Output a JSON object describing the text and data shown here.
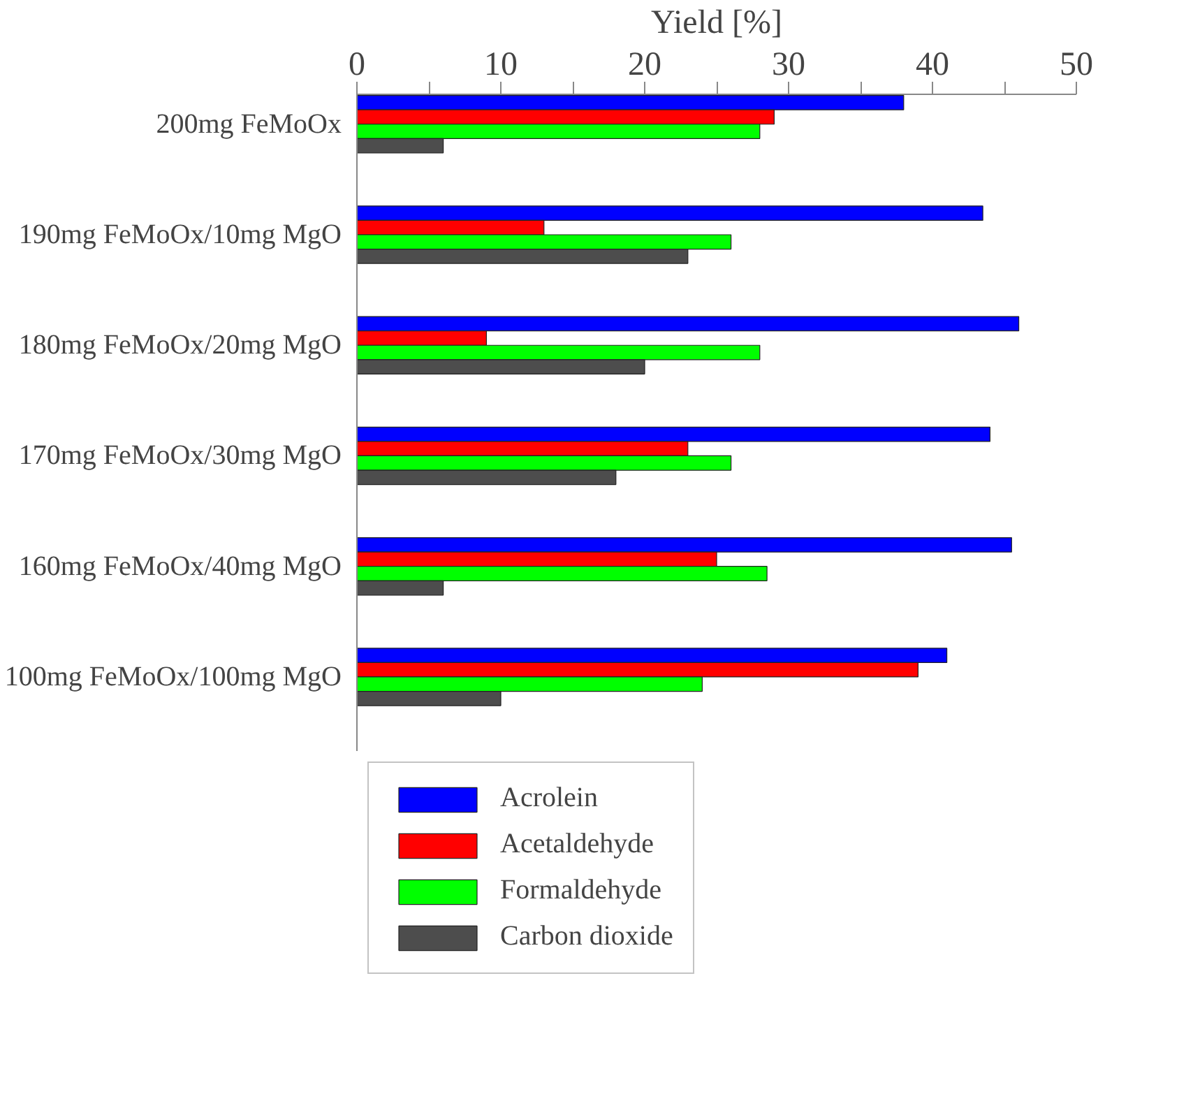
{
  "chart_data": {
    "type": "bar",
    "orientation": "horizontal",
    "xlabel": "Yield [%]",
    "categories": [
      "200mg FeMoOx",
      "190mg FeMoOx/10mg MgO",
      "180mg FeMoOx/20mg MgO",
      "170mg FeMoOx/30mg MgO",
      "160mg FeMoOx/40mg MgO",
      "100mg FeMoOx/100mg MgO"
    ],
    "series": [
      {
        "name": "Acrolein",
        "color": "#0000ff",
        "values": [
          38,
          43.5,
          46,
          44,
          45.5,
          41
        ]
      },
      {
        "name": "Acetaldehyde",
        "color": "#ff0000",
        "values": [
          29,
          13,
          9,
          23,
          25,
          39
        ]
      },
      {
        "name": "Formaldehyde",
        "color": "#00ff00",
        "values": [
          28,
          26,
          28,
          26,
          28.5,
          24
        ]
      },
      {
        "name": "Carbon dioxide",
        "color": "#4d4d4d",
        "values": [
          6,
          23,
          20,
          18,
          6,
          10
        ]
      }
    ],
    "xlim": [
      0,
      50
    ],
    "xticks": [
      0,
      {
        "value": 5,
        "label": null
      },
      10,
      {
        "value": 15,
        "label": null
      },
      20,
      {
        "value": 25,
        "label": null
      },
      30,
      {
        "value": 35,
        "label": null
      },
      40,
      {
        "value": 45,
        "label": null
      },
      50
    ],
    "legend": "bottom"
  }
}
